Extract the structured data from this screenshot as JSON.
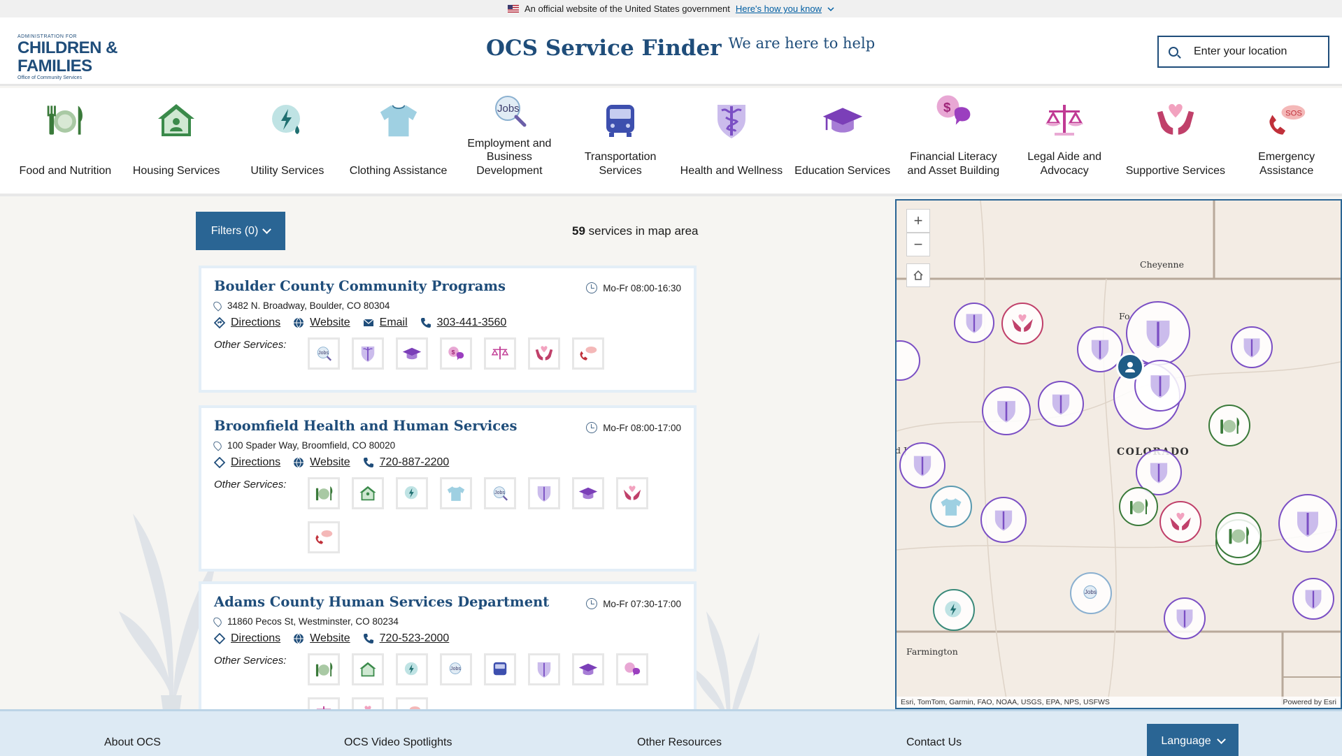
{
  "gov_banner": {
    "text": "An official website of the United States government",
    "link": "Here's how you know"
  },
  "header": {
    "logo_top": "ADMINISTRATION FOR",
    "logo_main": "CHILDREN & FAMILIES",
    "logo_sub": "Office of Community Services",
    "title": "OCS Service Finder",
    "tagline": "We are here to help",
    "search_placeholder": "Enter your location"
  },
  "categories": [
    {
      "label": "Food and Nutrition",
      "icon": "food-icon"
    },
    {
      "label": "Housing Services",
      "icon": "house-icon"
    },
    {
      "label": "Utility Services",
      "icon": "utility-icon"
    },
    {
      "label": "Clothing Assistance",
      "icon": "shirt-icon"
    },
    {
      "label": "Employment and Business Development",
      "icon": "jobs-icon"
    },
    {
      "label": "Transportation Services",
      "icon": "bus-icon"
    },
    {
      "label": "Health and Wellness",
      "icon": "caduceus-icon"
    },
    {
      "label": "Education Services",
      "icon": "graduation-cap-icon"
    },
    {
      "label": "Financial Literacy and Asset Building",
      "icon": "money-chat-icon"
    },
    {
      "label": "Legal Aide and Advocacy",
      "icon": "scales-icon"
    },
    {
      "label": "Supportive Services",
      "icon": "hands-heart-icon"
    },
    {
      "label": "Emergency Assistance",
      "icon": "sos-phone-icon"
    }
  ],
  "list": {
    "filters_label": "Filters (0)",
    "count": "59",
    "count_suffix": " services in map area",
    "other_services_label": "Other Services:",
    "directions_label": "Directions",
    "website_label": "Website",
    "email_label": "Email"
  },
  "cards": [
    {
      "name": "Boulder County Community Programs",
      "hours": "Mo-Fr 08:00-16:30",
      "address": "3482 N. Broadway, Boulder, CO 80304",
      "phone": "303-441-3560",
      "has_email": true
    },
    {
      "name": "Broomfield Health and Human Services",
      "hours": "Mo-Fr 08:00-17:00",
      "address": "100 Spader Way, Broomfield, CO 80020",
      "phone": "720-887-2200",
      "has_email": false
    },
    {
      "name": "Adams County Human Services Department",
      "hours": "Mo-Fr 07:30-17:00",
      "address": "11860 Pecos St, Westminster, CO 80234",
      "phone": "720-523-2000",
      "has_email": false
    }
  ],
  "map": {
    "labels": {
      "cheyenne": "Cheyenne",
      "colorado": "COLORADO",
      "farmington": "Farmington",
      "fo": "Fo",
      "gj": "d J"
    },
    "attribution": "Esri, TomTom, Garmin, FAO, NOAA, USGS, EPA, NPS, USFWS",
    "powered": "Powered by Esri"
  },
  "footer": {
    "about": "About OCS",
    "videos": "OCS Video Spotlights",
    "resources": "Other Resources",
    "contact": "Contact Us",
    "language": "Language"
  },
  "colors": {
    "primary": "#2a6594",
    "title": "#1f4d7a",
    "health": "#7b4fc4",
    "food": "#3a7a3a",
    "support": "#c0406a"
  }
}
